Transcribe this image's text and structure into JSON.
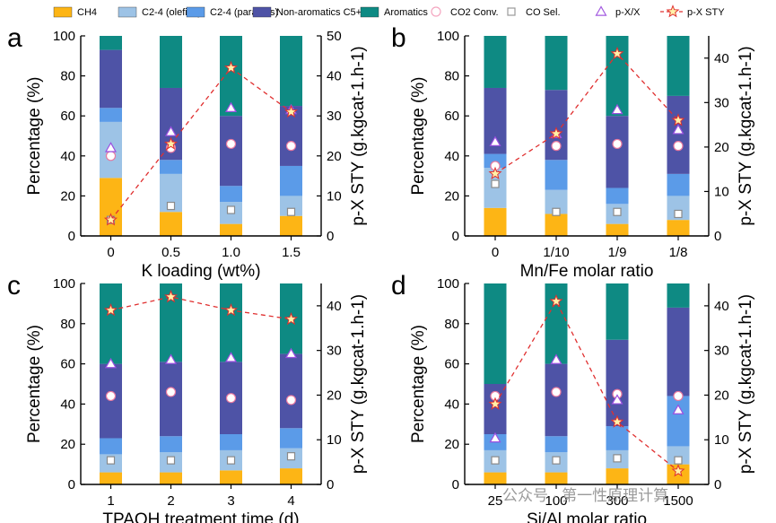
{
  "legend": [
    {
      "key": "ch4",
      "label": "CH4",
      "color": "#FDB515",
      "kind": "rect"
    },
    {
      "key": "c24o",
      "label": "C2-4 (olefins)",
      "color": "#9DC3E6",
      "kind": "rect"
    },
    {
      "key": "c24p",
      "label": "C2-4 (paraffins)",
      "color": "#5B9BE8",
      "kind": "rect"
    },
    {
      "key": "nonarom",
      "label": "Non-aromatics C5+",
      "color": "#4E53A6",
      "kind": "rect"
    },
    {
      "key": "arom",
      "label": "Aromatics",
      "color": "#0E8A83",
      "kind": "rect"
    },
    {
      "key": "co2conv",
      "label": "CO2 Conv.",
      "color": "#F4A6C0",
      "kind": "circle"
    },
    {
      "key": "cosel",
      "label": "CO Sel.",
      "color": "#999999",
      "kind": "square"
    },
    {
      "key": "pxx",
      "label": "p-X/X",
      "color": "#A35BE0",
      "kind": "triangle"
    },
    {
      "key": "pxsty",
      "label": "p-X STY",
      "color": "#E03030",
      "kind": "starline"
    }
  ],
  "watermark": "公众号 · 第一性原理计算",
  "chart_data": [
    {
      "panel": "a",
      "type": "bar",
      "xlabel": "K loading (wt%)",
      "ylabel": "Percentage (%)",
      "y2label": "p-X STY (g.kgcat-1.h-1)",
      "ylim": [
        0,
        100
      ],
      "y2lim": [
        0,
        50
      ],
      "categories": [
        "0",
        "0.5",
        "1.0",
        "1.5"
      ],
      "stacks": {
        "ch4": [
          29,
          12,
          6,
          10
        ],
        "c24o": [
          28,
          19,
          11,
          10
        ],
        "c24p": [
          7,
          7,
          8,
          15
        ],
        "nonarom": [
          29,
          36,
          35,
          30
        ],
        "arom": [
          7,
          26,
          40,
          35
        ]
      },
      "co2conv": [
        40,
        44,
        46,
        45
      ],
      "cosel": [
        8,
        15,
        13,
        12
      ],
      "pxx": [
        44,
        52,
        64,
        63
      ],
      "pxsty": [
        4,
        23,
        42,
        31
      ]
    },
    {
      "panel": "b",
      "type": "bar",
      "xlabel": "Mn/Fe molar ratio",
      "ylabel": "Percentage (%)",
      "y2label": "p-X STY (g.kgcat-1.h-1)",
      "ylim": [
        0,
        100
      ],
      "y2lim": [
        0,
        45
      ],
      "categories": [
        "0",
        "1/10",
        "1/9",
        "1/8"
      ],
      "stacks": {
        "ch4": [
          14,
          11,
          6,
          8
        ],
        "c24o": [
          20,
          12,
          10,
          12
        ],
        "c24p": [
          7,
          15,
          8,
          11
        ],
        "nonarom": [
          33,
          35,
          36,
          39
        ],
        "arom": [
          26,
          27,
          40,
          30
        ]
      },
      "co2conv": [
        35,
        45,
        46,
        45
      ],
      "cosel": [
        26,
        12,
        12,
        11
      ],
      "pxx": [
        47,
        51,
        63,
        53
      ],
      "pxsty": [
        14,
        23,
        41,
        26
      ]
    },
    {
      "panel": "c",
      "type": "bar",
      "xlabel": "TPAOH treatment time (d)",
      "ylabel": "Percentage (%)",
      "y2label": "p-X STY (g.kgcat-1.h-1)",
      "ylim": [
        0,
        100
      ],
      "y2lim": [
        0,
        45
      ],
      "categories": [
        "1",
        "2",
        "3",
        "4"
      ],
      "stacks": {
        "ch4": [
          6,
          6,
          7,
          8
        ],
        "c24o": [
          9,
          10,
          10,
          10
        ],
        "c24p": [
          8,
          8,
          8,
          10
        ],
        "nonarom": [
          37,
          37,
          36,
          37
        ],
        "arom": [
          40,
          39,
          39,
          35
        ]
      },
      "co2conv": [
        44,
        46,
        43,
        42
      ],
      "cosel": [
        12,
        12,
        12,
        14
      ],
      "pxx": [
        60,
        62,
        63,
        65
      ],
      "pxsty": [
        39,
        42,
        39,
        37
      ]
    },
    {
      "panel": "d",
      "type": "bar",
      "xlabel": "Si/Al molar ratio",
      "ylabel": "Percentage (%)",
      "y2label": "p-X STY (g.kgcat-1.h-1)",
      "ylim": [
        0,
        100
      ],
      "y2lim": [
        0,
        45
      ],
      "categories": [
        "25",
        "100",
        "300",
        "1500"
      ],
      "stacks": {
        "ch4": [
          6,
          6,
          8,
          10
        ],
        "c24o": [
          11,
          10,
          9,
          9
        ],
        "c24p": [
          8,
          8,
          12,
          25
        ],
        "nonarom": [
          25,
          36,
          43,
          44
        ],
        "arom": [
          50,
          40,
          28,
          12
        ]
      },
      "co2conv": [
        44,
        46,
        45,
        44
      ],
      "cosel": [
        12,
        12,
        13,
        12
      ],
      "pxx": [
        23,
        62,
        42,
        37
      ],
      "pxsty": [
        18,
        41,
        14,
        3
      ]
    }
  ]
}
